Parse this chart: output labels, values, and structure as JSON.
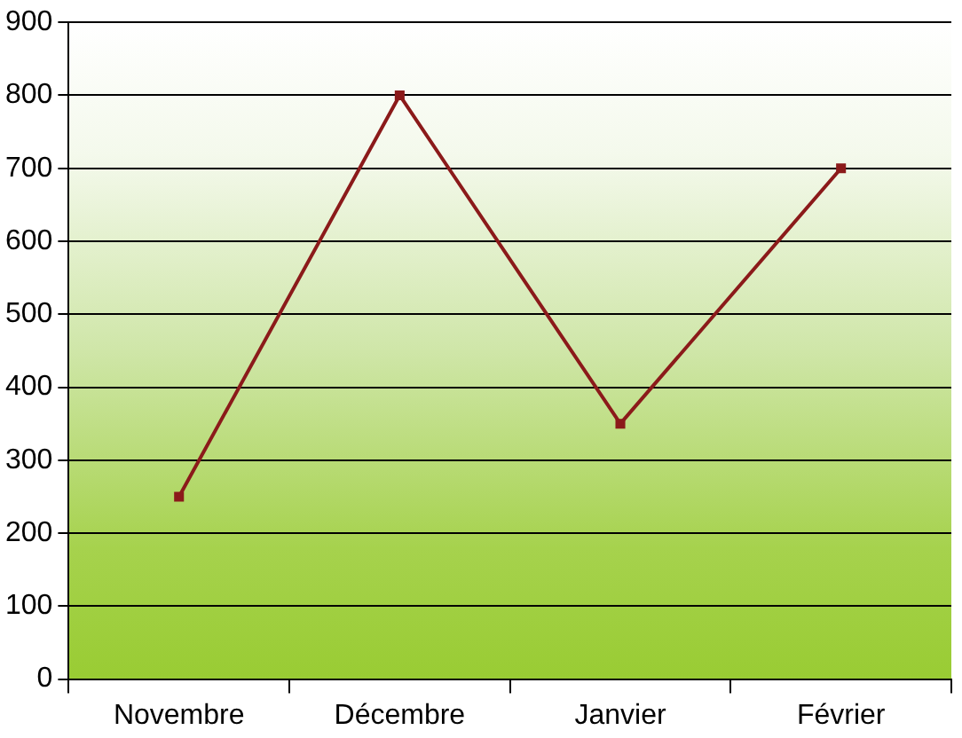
{
  "chart_data": {
    "type": "line",
    "categories": [
      "Novembre",
      "Décembre",
      "Janvier",
      "Février"
    ],
    "values": [
      250,
      800,
      350,
      700
    ],
    "color": "#8b1a1a",
    "ylim": [
      0,
      900
    ],
    "yticks": [
      0,
      100,
      200,
      300,
      400,
      500,
      600,
      700,
      800,
      900
    ],
    "grid": "y",
    "marker": "square",
    "line_style": "solid"
  }
}
